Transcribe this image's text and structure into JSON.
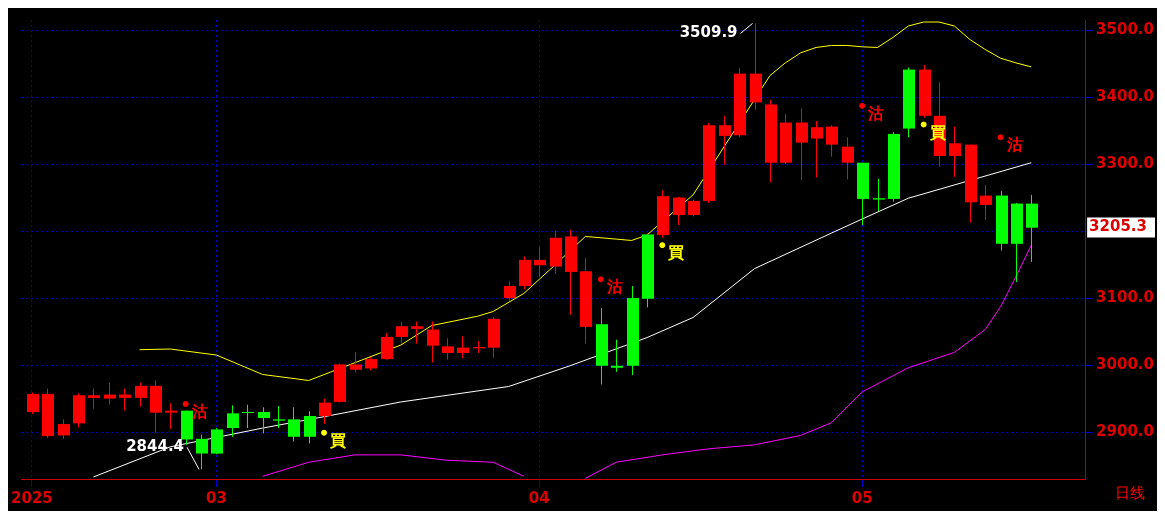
{
  "chart_data": {
    "type": "candlestick",
    "grid": true,
    "categories": [
      "2025",
      null,
      null,
      null,
      null,
      null,
      null,
      null,
      null,
      null,
      null,
      null,
      "03",
      null,
      null,
      null,
      null,
      null,
      null,
      null,
      null,
      null,
      null,
      null,
      null,
      null,
      null,
      null,
      null,
      null,
      null,
      null,
      null,
      "04",
      null,
      null,
      null,
      null,
      null,
      null,
      null,
      null,
      null,
      null,
      null,
      null,
      null,
      null,
      null,
      null,
      null,
      null,
      null,
      null,
      "05",
      null,
      null,
      null,
      null,
      null,
      null,
      null,
      null,
      null,
      null,
      null
    ],
    "ylim": [
      2830,
      3515
    ],
    "yticks": [
      {
        "value": 2900,
        "label": "2900.0"
      },
      {
        "value": 3000,
        "label": "3000.0"
      },
      {
        "value": 3100,
        "label": "3100.0"
      },
      {
        "value": 3200,
        "label": null
      },
      {
        "value": 3300,
        "label": "3300.0"
      },
      {
        "value": 3400,
        "label": "3400.0"
      },
      {
        "value": 3500,
        "label": "3500.0"
      }
    ],
    "ohlc": [
      [
        2957,
        2959,
        2927,
        2930
      ],
      [
        2957,
        2965,
        2891,
        2894
      ],
      [
        2912,
        2919,
        2890,
        2895
      ],
      [
        2955,
        2958,
        2907,
        2913
      ],
      [
        2955,
        2965,
        2935,
        2951
      ],
      [
        2956,
        2974,
        2941,
        2950
      ],
      [
        2956,
        2965,
        2932,
        2951
      ],
      [
        2969,
        2974,
        2938,
        2951
      ],
      [
        2969,
        2977,
        2899,
        2929
      ],
      [
        2932,
        2943,
        2905,
        2929
      ],
      [
        2889,
        2932,
        2881,
        2932
      ],
      [
        2868,
        2896,
        2844.4,
        2890
      ],
      [
        2868,
        2906,
        2867,
        2904
      ],
      [
        2906,
        2940,
        2893,
        2928
      ],
      [
        2929,
        2941,
        2906,
        2930
      ],
      [
        2921,
        2937,
        2898,
        2930
      ],
      [
        2917,
        2939,
        2906,
        2919
      ],
      [
        2893,
        2937,
        2886,
        2919
      ],
      [
        2893,
        2931,
        2883,
        2924
      ],
      [
        2944,
        2950,
        2912,
        2924
      ],
      [
        3001,
        3002,
        2944,
        2945
      ],
      [
        3001,
        3019,
        2989,
        2993
      ],
      [
        3009,
        3012,
        2992,
        2995
      ],
      [
        3042,
        3048,
        3008,
        3009
      ],
      [
        3058,
        3065,
        3032,
        3042
      ],
      [
        3058,
        3065,
        3032,
        3054
      ],
      [
        3053,
        3065,
        3004,
        3029
      ],
      [
        3028,
        3040,
        3008,
        3018
      ],
      [
        3026,
        3043,
        3010,
        3018
      ],
      [
        3027,
        3036,
        3018,
        3025
      ],
      [
        3069,
        3072,
        3011,
        3026
      ],
      [
        3118,
        3125,
        3096,
        3100
      ],
      [
        3157,
        3162,
        3113,
        3118
      ],
      [
        3157,
        3176,
        3131,
        3149
      ],
      [
        3190,
        3201,
        3136,
        3147
      ],
      [
        3192,
        3202,
        3075,
        3139
      ],
      [
        3140,
        3160,
        3032,
        3057
      ],
      [
        2999,
        3085,
        2971,
        3061
      ],
      [
        2996,
        3038,
        2990,
        2999
      ],
      [
        2999,
        3118,
        2985,
        3100
      ],
      [
        3099,
        3196,
        3086,
        3195
      ],
      [
        3252,
        3261,
        3190,
        3194
      ],
      [
        3250,
        3251,
        3209,
        3224
      ],
      [
        3245,
        3247,
        3222,
        3224
      ],
      [
        3358,
        3361,
        3242,
        3245
      ],
      [
        3358,
        3372,
        3299,
        3342
      ],
      [
        3435,
        3443,
        3340,
        3343
      ],
      [
        3435,
        3509.9,
        3381,
        3392
      ],
      [
        3389,
        3396,
        3273,
        3302
      ],
      [
        3362,
        3375,
        3300,
        3302
      ],
      [
        3362,
        3383,
        3276,
        3332
      ],
      [
        3355,
        3364,
        3280,
        3338
      ],
      [
        3356,
        3358,
        3311,
        3329
      ],
      [
        3326,
        3340,
        3277,
        3302
      ],
      [
        3248,
        3302,
        3209,
        3302
      ],
      [
        3247,
        3278,
        3230,
        3249
      ],
      [
        3248,
        3348,
        3244,
        3345
      ],
      [
        3353,
        3444,
        3340,
        3441
      ],
      [
        3441,
        3448,
        3369,
        3372
      ],
      [
        3372,
        3422,
        3296,
        3312
      ],
      [
        3331,
        3356,
        3281,
        3312
      ],
      [
        3329,
        3329,
        3213,
        3243
      ],
      [
        3253,
        3269,
        3217,
        3239
      ],
      [
        3181,
        3260,
        3171,
        3253
      ],
      [
        3181,
        3242,
        3124,
        3241
      ],
      [
        3205,
        3254,
        3154,
        3241
      ]
    ],
    "colors": [
      "#ff0000",
      "#ff0000",
      "#ff0000",
      "#ff0000",
      "#ff0000",
      "#ff0000",
      "#ff0000",
      "#ff0000",
      "#ff0000",
      "#ff0000",
      "#00ff00",
      "#00ff00",
      "#00ff00",
      "#00ff00",
      "#00ff00",
      "#00ff00",
      "#00ff00",
      "#00ff00",
      "#00ff00",
      "#ff0000",
      "#ff0000",
      "#ff0000",
      "#ff0000",
      "#ff0000",
      "#ff0000",
      "#ff0000",
      "#ff0000",
      "#ff0000",
      "#ff0000",
      "#ff0000",
      "#ff0000",
      "#ff0000",
      "#ff0000",
      "#ff0000",
      "#ff0000",
      "#ff0000",
      "#ff0000",
      "#00ff00",
      "#00ff00",
      "#00ff00",
      "#00ff00",
      "#ff0000",
      "#ff0000",
      "#ff0000",
      "#ff0000",
      "#ff0000",
      "#ff0000",
      "#ff0000",
      "#ff0000",
      "#ff0000",
      "#ff0000",
      "#ff0000",
      "#ff0000",
      "#ff0000",
      "#00ff00",
      "#00ff00",
      "#00ff00",
      "#00ff00",
      "#ff0000",
      "#ff0000",
      "#ff0000",
      "#ff0000",
      "#ff0000",
      "#00ff00",
      "#00ff00",
      "#00ff00"
    ],
    "series": [
      {
        "type": "line",
        "color": "#ffffff",
        "values": [
          null,
          null,
          null,
          null,
          2833,
          null,
          null,
          null,
          null,
          2878,
          null,
          null,
          null,
          null,
          null,
          2906,
          null,
          null,
          null,
          2923,
          null,
          null,
          null,
          null,
          2945,
          null,
          null,
          null,
          null,
          null,
          null,
          2968,
          null,
          null,
          null,
          2999,
          null,
          null,
          null,
          null,
          3041,
          null,
          null,
          3071,
          null,
          null,
          null,
          3144,
          null,
          null,
          null,
          null,
          3197,
          null,
          3218,
          null,
          null,
          3249,
          null,
          null,
          null,
          null,
          null,
          null,
          null,
          3302
        ]
      },
      {
        "type": "line",
        "color": "#ffff00",
        "values": [
          null,
          null,
          null,
          null,
          null,
          null,
          null,
          3023,
          null,
          3024,
          null,
          null,
          3015,
          null,
          null,
          2986,
          null,
          null,
          2977,
          null,
          null,
          null,
          null,
          null,
          3030,
          null,
          3059,
          null,
          null,
          3073,
          3080,
          null,
          3107,
          null,
          3149,
          null,
          3192,
          null,
          3188,
          3186,
          3194,
          null,
          null,
          3254,
          null,
          null,
          null,
          null,
          3432,
          3451,
          3466,
          3474,
          3477,
          3477,
          3475,
          3474,
          3489,
          3506,
          3512,
          3512,
          3506,
          3486,
          3471,
          3458,
          3451,
          3445
        ]
      },
      {
        "type": "line",
        "color": "#ff00ff",
        "values": [
          null,
          null,
          null,
          null,
          null,
          null,
          null,
          null,
          null,
          null,
          null,
          null,
          null,
          null,
          null,
          2834,
          null,
          null,
          2855,
          null,
          null,
          2866,
          null,
          null,
          2866,
          null,
          null,
          2858,
          null,
          null,
          2855,
          null,
          2834,
          null,
          null,
          null,
          null,
          null,
          null,
          null,
          null,
          null,
          null,
          null,
          null,
          null,
          null,
          null,
          null,
          null,
          null,
          null,
          null,
          null,
          null,
          null,
          null,
          null,
          null,
          null,
          null,
          null,
          null,
          null,
          null,
          null
        ]
      },
      {
        "type": "line",
        "color": "#ff00ff",
        "values": [
          null,
          null,
          null,
          null,
          null,
          null,
          null,
          null,
          null,
          null,
          null,
          null,
          null,
          null,
          null,
          null,
          null,
          null,
          null,
          null,
          null,
          null,
          null,
          null,
          null,
          null,
          null,
          null,
          null,
          null,
          null,
          null,
          null,
          null,
          null,
          null,
          2831,
          null,
          2855,
          null,
          null,
          2866,
          null,
          null,
          2875,
          null,
          null,
          2881,
          null,
          null,
          2895,
          null,
          2914,
          null,
          2960,
          null,
          null,
          2996,
          null,
          null,
          3019,
          null,
          3053,
          3087,
          3132,
          3179
        ]
      },
      {
        "type": "scatter",
        "name": "沽",
        "color": "#ff0000",
        "values": [
          null,
          null,
          null,
          null,
          null,
          null,
          null,
          null,
          null,
          null,
          2942,
          null,
          null,
          null,
          null,
          null,
          null,
          null,
          null,
          null,
          null,
          null,
          null,
          null,
          null,
          null,
          null,
          null,
          null,
          null,
          null,
          null,
          null,
          null,
          null,
          null,
          null,
          3128,
          null,
          null,
          null,
          null,
          null,
          null,
          null,
          null,
          null,
          null,
          null,
          null,
          null,
          null,
          null,
          null,
          3387,
          null,
          null,
          null,
          null,
          null,
          null,
          null,
          null,
          3340,
          null,
          null
        ]
      },
      {
        "type": "scatter",
        "name": "買",
        "color": "#ffff00",
        "values": [
          null,
          null,
          null,
          null,
          null,
          null,
          null,
          null,
          null,
          null,
          null,
          null,
          null,
          null,
          null,
          null,
          null,
          null,
          null,
          2899,
          null,
          null,
          null,
          null,
          null,
          null,
          null,
          null,
          null,
          null,
          null,
          null,
          null,
          null,
          null,
          null,
          null,
          null,
          null,
          null,
          null,
          3179,
          null,
          null,
          null,
          null,
          null,
          null,
          null,
          null,
          null,
          null,
          null,
          null,
          null,
          null,
          null,
          null,
          3359,
          null,
          null,
          null,
          null,
          null,
          null,
          null
        ]
      }
    ],
    "annotations": [
      "3509.9",
      "2844.4",
      "3205.3",
      "日线"
    ]
  }
}
